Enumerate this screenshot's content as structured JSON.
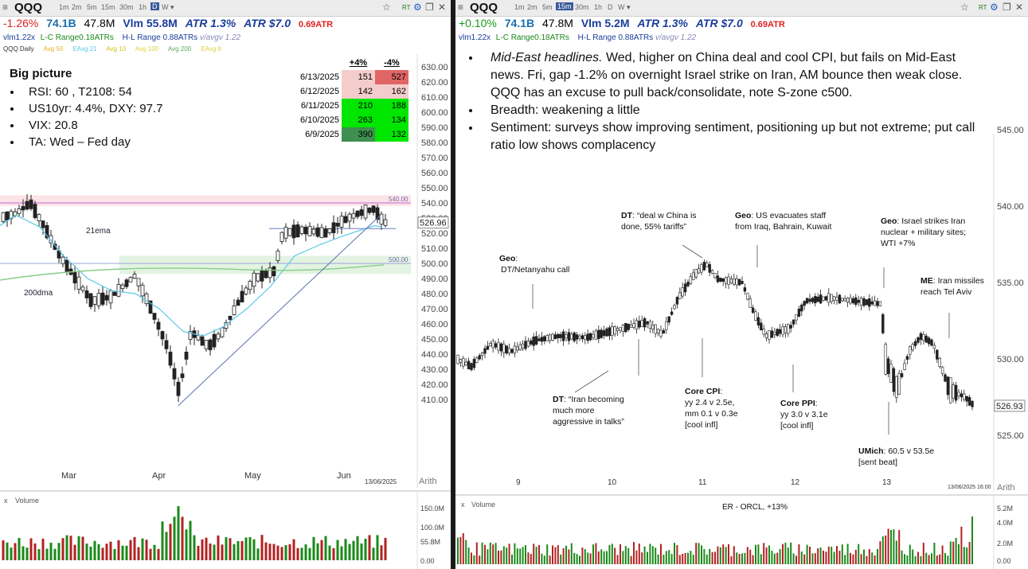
{
  "left": {
    "symbol": "QQQ",
    "timeframes": [
      "1m",
      "2m",
      "5m",
      "15m",
      "30m",
      "1h",
      "D",
      "W"
    ],
    "selected_tf": "D",
    "stats": {
      "change": "-1.26%",
      "dollar_vol": "74.1B",
      "vol": "47.8M",
      "vlm": "Vlm 55.8M",
      "atr_pct": "ATR 1.3%",
      "atr_dollar": "ATR $7.0",
      "atr_ratio": "0.69ATR"
    },
    "indicators": {
      "vlm": "vlm1.22x",
      "lc": "L-C Range0.18ATRs",
      "hl": "H-L Range 0.88ATRs",
      "avgv": "v/avgv 1.22"
    },
    "legend": [
      "QQQ Daily",
      "Avg 50",
      "EAvg 21",
      "Avg 10",
      "Avg 100",
      "Avg 200",
      "EAvg 8"
    ],
    "price_labels": [
      "630.00",
      "620.00",
      "610.00",
      "600.00",
      "590.00",
      "580.00",
      "570.00",
      "560.00",
      "550.00",
      "540.00",
      "530.00",
      "520.00",
      "510.00",
      "500.00",
      "490.00",
      "480.00",
      "470.00",
      "460.00",
      "450.00",
      "440.00",
      "430.00",
      "420.00",
      "410.00"
    ],
    "last_price": "526.96",
    "zone_upper": "540.00",
    "zone_lower": "500.00",
    "months": [
      "Mar",
      "Apr",
      "May",
      "Jun"
    ],
    "date_label": "13/06/2025",
    "scale_label": "Arith",
    "ema_label": "21ema",
    "dma_label": "200dma",
    "big_picture": {
      "title": "Big picture",
      "items": [
        "RSI: 60 , T2108: 54",
        "US10yr: 4.4%, DXY: 97.7",
        "VIX: 20.8",
        "TA: Wed – Fed day"
      ]
    },
    "breadth_table": {
      "headers": [
        "+4%",
        "-4%"
      ],
      "rows": [
        {
          "date": "6/13/2025",
          "up": "151",
          "down": "527"
        },
        {
          "date": "6/12/2025",
          "up": "142",
          "down": "162"
        },
        {
          "date": "6/11/2025",
          "up": "210",
          "down": "188"
        },
        {
          "date": "6/10/2025",
          "up": "263",
          "down": "134"
        },
        {
          "date": "6/9/2025",
          "up": "390",
          "down": "132"
        }
      ]
    },
    "volume": {
      "label": "Volume",
      "axis": [
        "150.0M",
        "100.0M",
        "55.8M",
        "0.00"
      ]
    }
  },
  "right": {
    "symbol": "QQQ",
    "timeframes": [
      "1m",
      "2m",
      "5m",
      "15m",
      "30m",
      "1h",
      "D",
      "W"
    ],
    "selected_tf": "15m",
    "stats": {
      "change": "+0.10%",
      "dollar_vol": "74.1B",
      "vol": "47.8M",
      "vlm": "Vlm 5.2M",
      "atr_pct": "ATR 1.3%",
      "atr_dollar": "ATR $7.0",
      "atr_ratio": "0.69ATR"
    },
    "indicators": {
      "vlm": "vlm1.22x",
      "lc": "L-C Range0.18ATRs",
      "hl": "H-L Range 0.88ATRs",
      "avgv": "v/avgv 1.22"
    },
    "notes": [
      {
        "lead": "Mid-East headlines.",
        "text": "  Wed, higher on China deal and cool CPI, but fails on Mid-East news.  Fri, gap -1.2% on overnight Israel strike on Iran, AM bounce then weak close.  QQQ has an excuse to pull back/consolidate, note S-zone c500."
      },
      {
        "lead": "",
        "text": "Breadth: weakening a little"
      },
      {
        "lead": "",
        "text": "Sentiment: surveys show improving sentiment, positioning up but not extreme; put call ratio low shows complacency"
      }
    ],
    "price_labels": [
      "545.00",
      "540.00",
      "535.00",
      "530.00",
      "525.00"
    ],
    "last_price": "526.93",
    "days": [
      "9",
      "10",
      "11",
      "12",
      "13"
    ],
    "date_label": "13/06/2025 16:00",
    "scale_label": "Arith",
    "annotations": [
      {
        "id": "geo1",
        "bold": "Geo",
        "lines": [
          ":",
          "DT/Netanyahu call"
        ]
      },
      {
        "id": "dt1",
        "bold": "DT",
        "lines": [
          ": “deal w China is",
          "done, 55% tariffs”"
        ]
      },
      {
        "id": "geo2",
        "bold": "Geo",
        "lines": [
          ": US evacuates staff",
          "from Iraq, Bahrain, Kuwait"
        ]
      },
      {
        "id": "geo3",
        "bold": "Geo",
        "lines": [
          ": Israel strikes Iran",
          "nuclear + military sites;",
          "WTI +7%"
        ]
      },
      {
        "id": "me",
        "bold": "ME",
        "lines": [
          ": Iran missiles",
          "reach Tel Aviv"
        ]
      },
      {
        "id": "dt2",
        "bold": "DT",
        "lines": [
          ": “Iran becoming",
          "much more",
          "aggressive in talks”"
        ]
      },
      {
        "id": "cpi",
        "bold": "Core CPI",
        "lines": [
          ":",
          "yy 2.4 v 2.5e,",
          "mm 0.1 v 0.3e",
          "[cool infl]"
        ]
      },
      {
        "id": "ppi",
        "bold": "Core PPI",
        "lines": [
          ":",
          "yy 3.0 v 3.1e",
          "[cool infl]"
        ]
      },
      {
        "id": "umich",
        "bold": "UMich",
        "lines": [
          ": 60.5 v 53.5e",
          "[sent beat]"
        ]
      }
    ],
    "volume": {
      "label": "Volume",
      "er_label": "ER - ORCL, +13%",
      "axis": [
        "5.2M",
        "4.0M",
        "2.0M",
        "0.00"
      ]
    }
  },
  "colors": {
    "up": "#1a8a1a",
    "down": "#b22222",
    "ema21": "#5bc8e8",
    "sma200": "#88cc88",
    "trend": "#5a6fb0",
    "zone_pink": "#fbe3e8",
    "zone_green": "#e2f3e2"
  }
}
